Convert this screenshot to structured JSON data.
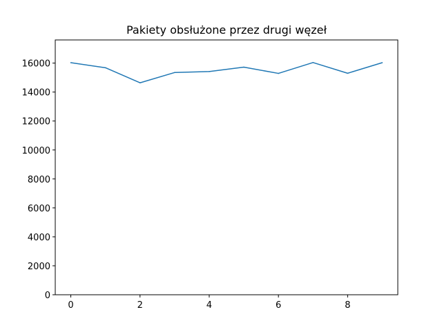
{
  "chart_data": {
    "type": "line",
    "title": "Pakiety obsłużone przez drugi węzeł",
    "xlabel": "",
    "ylabel": "",
    "x": [
      0,
      1,
      2,
      3,
      4,
      5,
      6,
      7,
      8,
      9
    ],
    "series": [
      {
        "name": "",
        "color": "#1f77b4",
        "values": [
          16030,
          15680,
          14640,
          15350,
          15420,
          15720,
          15290,
          16040,
          15300,
          16030
        ]
      }
    ],
    "xlim": [
      -0.45,
      9.45
    ],
    "ylim": [
      0,
      17600
    ],
    "xticks": [
      0,
      2,
      4,
      6,
      8
    ],
    "yticks": [
      0,
      2000,
      4000,
      6000,
      8000,
      10000,
      12000,
      14000,
      16000
    ],
    "grid": false,
    "legend": "none"
  }
}
